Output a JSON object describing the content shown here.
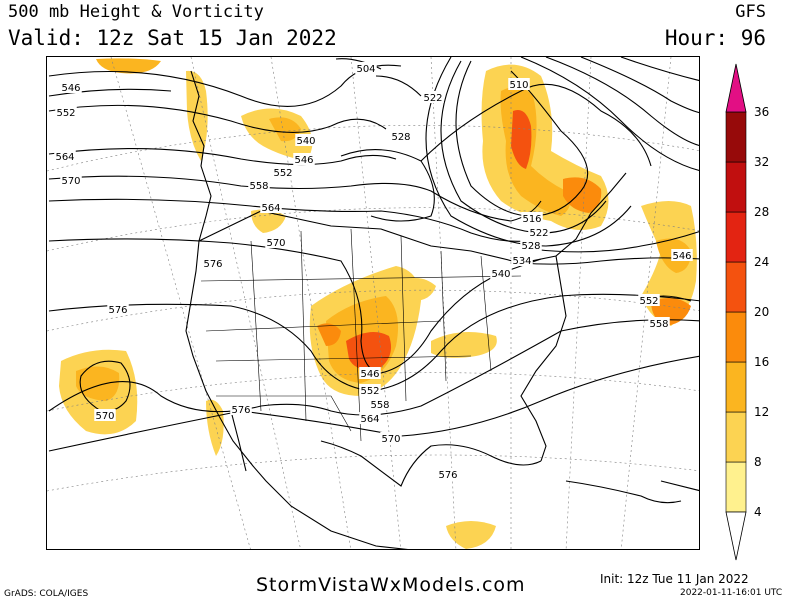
{
  "header": {
    "title": "500 mb Height & Vorticity",
    "valid": "Valid: 12z Sat 15 Jan 2022",
    "model": "GFS",
    "hour": "Hour: 96"
  },
  "footer": {
    "site": "StormVistaWxModels.com",
    "init": "Init: 12z Tue 11 Jan 2022",
    "timestamp": "2022-01-11-16:01 UTC",
    "credit": "GrADS: COLA/IGES"
  },
  "colorbar": {
    "levels": [
      4,
      8,
      12,
      16,
      20,
      24,
      28,
      32,
      36
    ],
    "colors": [
      "#fff18e",
      "#fcd352",
      "#fbb520",
      "#fb8b0c",
      "#f4520f",
      "#e32412",
      "#c10f0f",
      "#970a0a",
      "#e20f84"
    ]
  },
  "contour_labels": [
    "546",
    "552",
    "564",
    "570",
    "504",
    "522",
    "528",
    "540",
    "546",
    "552",
    "558",
    "564",
    "570",
    "510",
    "516",
    "522",
    "528",
    "534",
    "540",
    "576",
    "546",
    "552",
    "558",
    "576",
    "570",
    "576",
    "546",
    "552",
    "558",
    "564",
    "570",
    "576"
  ]
}
